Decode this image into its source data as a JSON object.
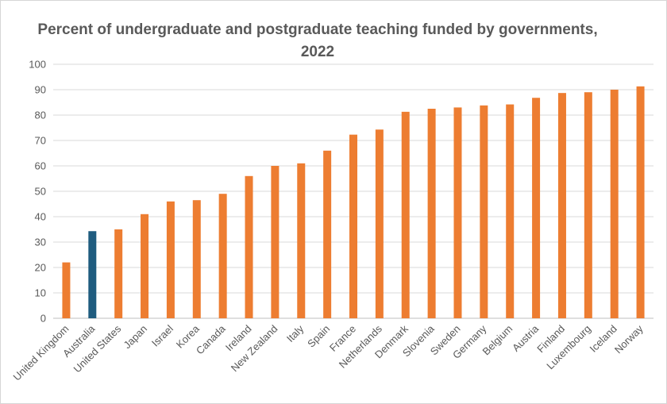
{
  "chart_data": {
    "type": "bar",
    "title": "Percent of undergraduate and postgraduate teaching funded by governments, 2022",
    "xlabel": "",
    "ylabel": "",
    "ylim": [
      0,
      100
    ],
    "yticks": [
      0,
      10,
      20,
      30,
      40,
      50,
      60,
      70,
      80,
      90,
      100
    ],
    "grid": true,
    "legend": "none",
    "categories": [
      "United Kingdom",
      "Australia",
      "United States",
      "Japan",
      "Israel",
      "Korea",
      "Canada",
      "Ireland",
      "New Zealand",
      "Italy",
      "Spain",
      "France",
      "Netherlands",
      "Denmark",
      "Slovenia",
      "Sweden",
      "Germany",
      "Belgium",
      "Austria",
      "Finland",
      "Luxembourg",
      "Iceland",
      "Norway"
    ],
    "values": [
      22,
      34.3,
      35,
      41,
      46,
      46.5,
      49,
      56,
      60,
      61,
      66,
      72.3,
      74.3,
      81.3,
      82.5,
      83,
      83.8,
      84.2,
      86.8,
      88.7,
      89,
      90,
      91.3
    ],
    "colors": {
      "default": "#ED7D31",
      "highlight": "#1F5C7F",
      "grid": "#D9D9D9",
      "axis": "#BFBFBF",
      "text": "#595959"
    },
    "highlight_category": "Australia"
  }
}
